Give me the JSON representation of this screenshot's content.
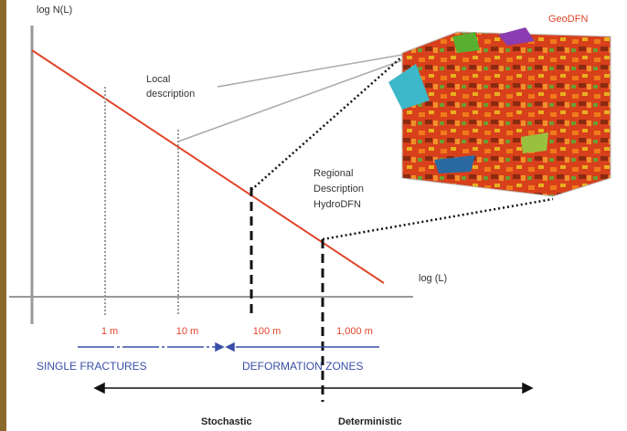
{
  "axes": {
    "y_label": "log N(L)",
    "x_label": "log (L)"
  },
  "scale_labels": [
    "1 m",
    "10 m",
    "100 m",
    "1,000 m"
  ],
  "local_description": [
    "Local",
    "description"
  ],
  "regional_description": [
    "Regional",
    "Description",
    "HydroDFN"
  ],
  "model_label": "GeoDFN",
  "ranges": {
    "left": "SINGLE FRACTURES",
    "right": "DEFORMATION ZONES"
  },
  "approach": {
    "left": "Stochastic",
    "right": "Deterministic"
  }
}
